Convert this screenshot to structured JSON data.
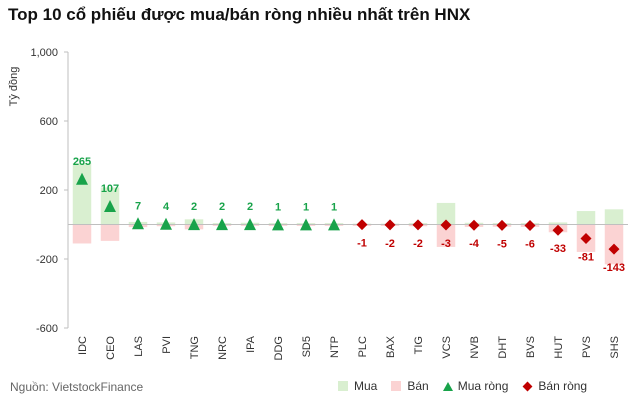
{
  "title": "Top 10 cổ phiếu được mua/bán ròng nhiều nhất trên HNX",
  "source": "Nguồn:  VietstockFinance",
  "chart_data": {
    "type": "bar",
    "ylabel": "Tỷ đồng",
    "ylim": [
      -600,
      1000
    ],
    "yticks": [
      1000,
      600,
      200,
      -200,
      -600
    ],
    "ytick_labels": [
      "1,000",
      "600",
      "200",
      "-200",
      "-600"
    ],
    "categories": [
      "IDC",
      "CEO",
      "LAS",
      "PVI",
      "TNG",
      "NRC",
      "IPA",
      "DDG",
      "SD5",
      "NTP",
      "PLC",
      "BAX",
      "TIG",
      "VCS",
      "NVB",
      "DHT",
      "BVS",
      "HUT",
      "PVS",
      "SHS"
    ],
    "series": [
      {
        "name": "Mua",
        "color": "#d9efd0",
        "values": [
          355,
          215,
          15,
          12,
          30,
          8,
          10,
          8,
          8,
          8,
          5,
          5,
          8,
          125,
          10,
          8,
          8,
          12,
          78,
          88
        ]
      },
      {
        "name": "Bán",
        "color": "#fbd3d3",
        "values": [
          -110,
          -95,
          -15,
          -10,
          -28,
          -8,
          -8,
          -8,
          -8,
          -8,
          -8,
          -8,
          -10,
          -130,
          -14,
          -13,
          -14,
          -45,
          -159,
          -231
        ]
      },
      {
        "name": "Mua ròng",
        "color": "#18a34a",
        "marker": "triangle",
        "values": [
          265,
          107,
          7,
          4,
          2,
          2,
          2,
          1,
          1,
          1,
          null,
          null,
          null,
          null,
          null,
          null,
          null,
          null,
          null,
          null
        ]
      },
      {
        "name": "Bán ròng",
        "color": "#c00000",
        "marker": "diamond",
        "values": [
          null,
          null,
          null,
          null,
          null,
          null,
          null,
          null,
          null,
          null,
          -1,
          -2,
          -2,
          -3,
          -4,
          -5,
          -6,
          -33,
          -81,
          -143
        ]
      }
    ],
    "data_labels": [
      "265",
      "107",
      "7",
      "4",
      "2",
      "2",
      "2",
      "1",
      "1",
      "1",
      "-1",
      "-2",
      "-2",
      "-3",
      "-4",
      "-5",
      "-6",
      "-33",
      "-81",
      "-143"
    ],
    "grid": false,
    "legend": "bottom-right"
  },
  "legend": {
    "buy": "Mua",
    "sell": "Bán",
    "net_buy": "Mua ròng",
    "net_sell": "Bán ròng"
  }
}
